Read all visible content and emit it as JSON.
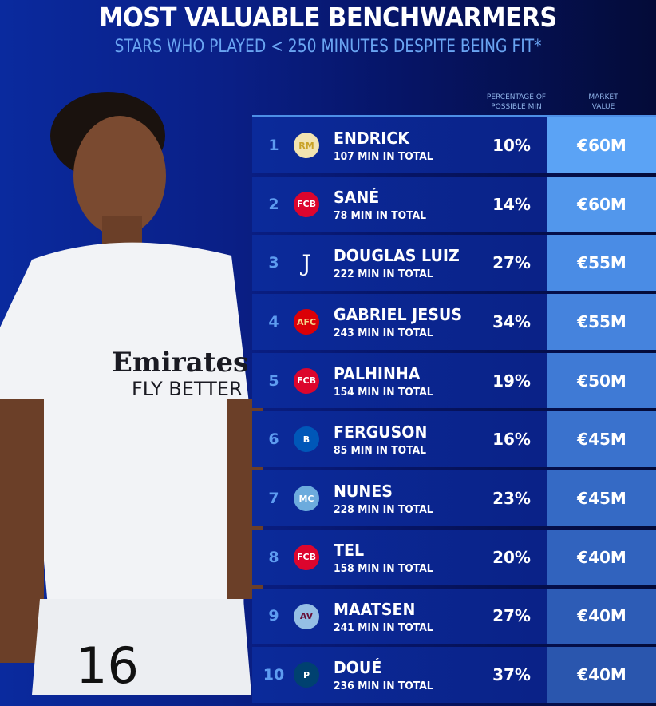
{
  "title": "MOST VALUABLE BENCHWARMERS",
  "subtitle": "STARS WHO PLAYED < 250 MINUTES DESPITE BEING FIT*",
  "headers": {
    "percentage": "PERCENTAGE OF POSSIBLE MIN",
    "market_value": "MARKET VALUE"
  },
  "photo": {
    "shirt_sponsor": "Emirates FLY BETTER",
    "shirt_number": "16"
  },
  "rows": [
    {
      "rank": "1",
      "club_icon": "real-madrid-crest",
      "name": "ENDRICK",
      "minutes": "107 MIN IN TOTAL",
      "percentage": "10%",
      "value": "€60M",
      "value_color": "#5ba3f5"
    },
    {
      "rank": "2",
      "club_icon": "bayern-munich-crest",
      "name": "SANÉ",
      "minutes": "78 MIN IN TOTAL",
      "percentage": "14%",
      "value": "€60M",
      "value_color": "#5297ec"
    },
    {
      "rank": "3",
      "club_icon": "juventus-crest",
      "name": "DOUGLAS LUIZ",
      "minutes": "222 MIN IN TOTAL",
      "percentage": "27%",
      "value": "€55M",
      "value_color": "#4a8ce5"
    },
    {
      "rank": "4",
      "club_icon": "arsenal-crest",
      "name": "GABRIEL JESUS",
      "minutes": "243 MIN IN TOTAL",
      "percentage": "34%",
      "value": "€55M",
      "value_color": "#4583dd"
    },
    {
      "rank": "5",
      "club_icon": "bayern-munich-crest",
      "name": "PALHINHA",
      "minutes": "154 MIN IN TOTAL",
      "percentage": "19%",
      "value": "€50M",
      "value_color": "#3f7ad5"
    },
    {
      "rank": "6",
      "club_icon": "brighton-crest",
      "name": "FERGUSON",
      "minutes": "85 MIN IN TOTAL",
      "percentage": "16%",
      "value": "€45M",
      "value_color": "#3a72cd"
    },
    {
      "rank": "7",
      "club_icon": "manchester-city-crest",
      "name": "NUNES",
      "minutes": "228 MIN IN TOTAL",
      "percentage": "23%",
      "value": "€45M",
      "value_color": "#356ac5"
    },
    {
      "rank": "8",
      "club_icon": "bayern-munich-crest",
      "name": "TEL",
      "minutes": "158 MIN IN TOTAL",
      "percentage": "20%",
      "value": "€40M",
      "value_color": "#3163be"
    },
    {
      "rank": "9",
      "club_icon": "aston-villa-crest",
      "name": "MAATSEN",
      "minutes": "241 MIN IN TOTAL",
      "percentage": "27%",
      "value": "€40M",
      "value_color": "#2d5cb6"
    },
    {
      "rank": "10",
      "club_icon": "psg-crest",
      "name": "DOUÉ",
      "minutes": "236 MIN IN TOTAL",
      "percentage": "37%",
      "value": "€40M",
      "value_color": "#2a56ae"
    }
  ]
}
